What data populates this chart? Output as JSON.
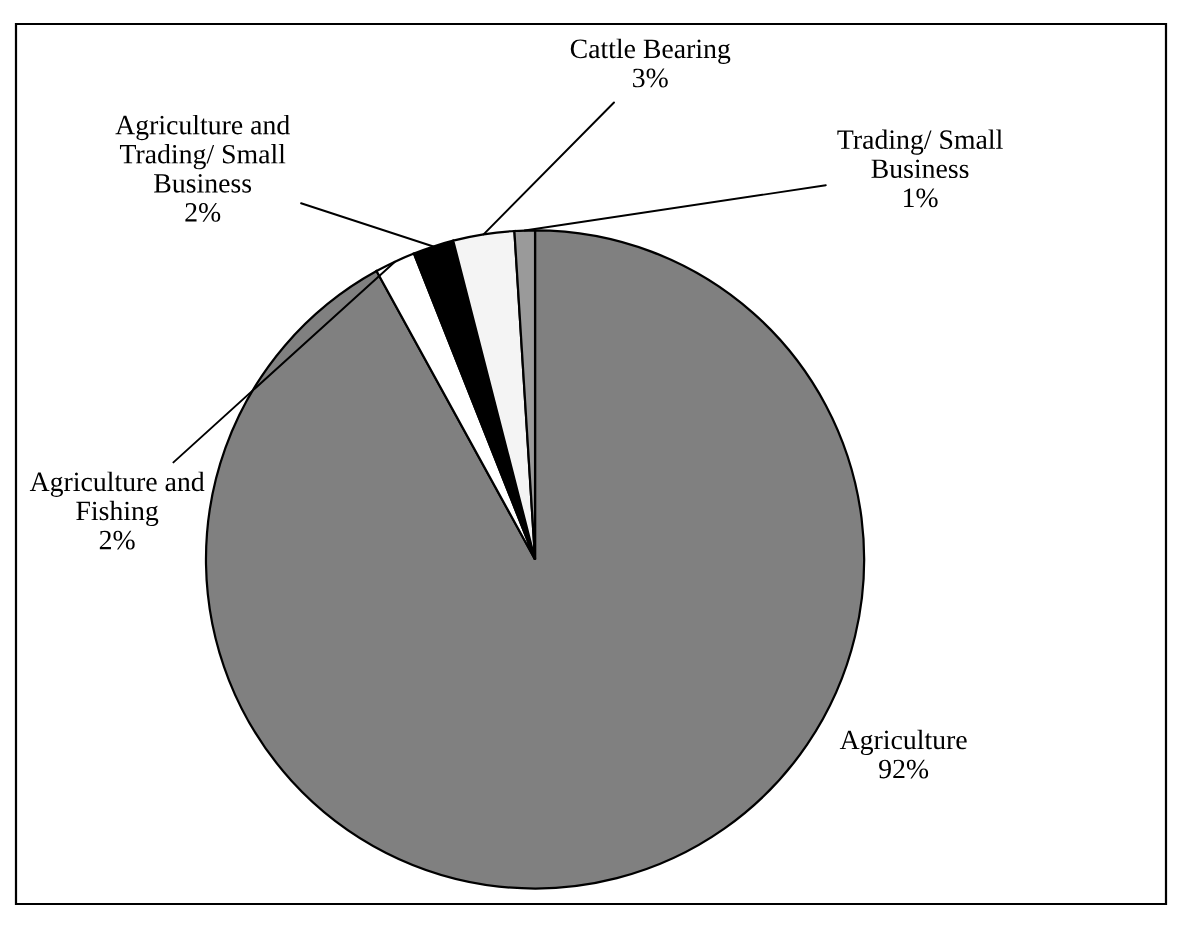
{
  "chart_data": {
    "type": "pie",
    "categories": [
      "Agriculture",
      "Agriculture and\nFishing",
      "Agriculture and\nTrading/ Small\nBusiness",
      "Cattle Bearing",
      "Trading/ Small\nBusiness"
    ],
    "values": [
      92,
      2,
      2,
      3,
      1
    ],
    "value_labels": [
      "92%",
      "2%",
      "2%",
      "3%",
      "1%"
    ],
    "colors": [
      "#808080",
      "#ffffff",
      "#000000",
      "#f4f4f4",
      "#9a9a9a"
    ],
    "legend": false
  }
}
